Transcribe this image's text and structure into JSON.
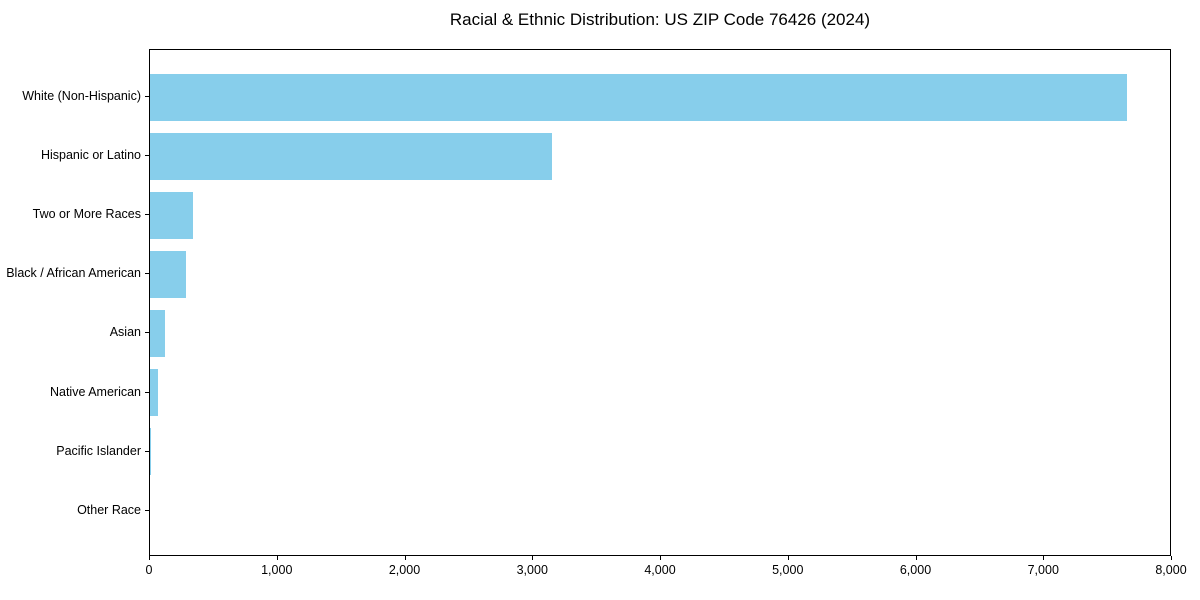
{
  "chart": {
    "title": "Racial & Ethnic Distribution: US ZIP Code 76426 (2024)",
    "bar_color": "#87CEEB",
    "axis_color": "#000000",
    "background_color": "#ffffff"
  },
  "chart_data": {
    "type": "bar",
    "orientation": "horizontal",
    "title": "Racial & Ethnic Distribution: US ZIP Code 76426 (2024)",
    "categories": [
      "White (Non-Hispanic)",
      "Hispanic or Latino",
      "Two or More Races",
      "Black / African American",
      "Asian",
      "Native American",
      "Pacific Islander",
      "Other Race"
    ],
    "values": [
      7650,
      3150,
      335,
      280,
      120,
      63,
      6,
      0
    ],
    "xlabel": "",
    "ylabel": "",
    "xlim": [
      0,
      8000
    ],
    "xticks": [
      0,
      1000,
      2000,
      3000,
      4000,
      5000,
      6000,
      7000,
      8000
    ],
    "xtick_labels": [
      "0",
      "1,000",
      "2,000",
      "3,000",
      "4,000",
      "5,000",
      "6,000",
      "7,000",
      "8,000"
    ],
    "grid": false,
    "legend_position": "none",
    "bar_color": "#87CEEB"
  }
}
